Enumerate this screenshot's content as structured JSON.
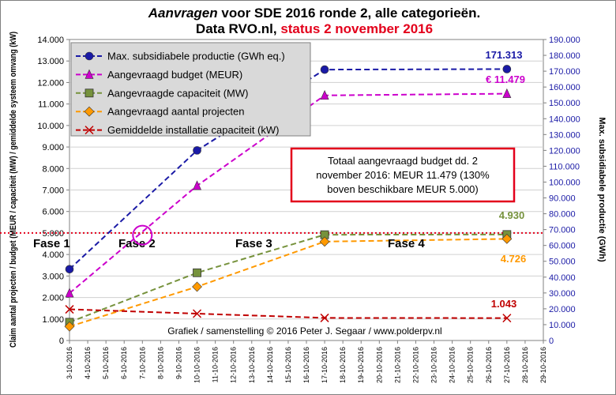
{
  "chart_data": {
    "type": "line",
    "title": {
      "italic_part": "Aanvragen",
      "rest_line1": " voor SDE 2016 ronde 2, alle categorieën.",
      "line2_black": "Data RVO.nl, ",
      "line2_red": "status 2 november 2016"
    },
    "colors": {
      "title_red": "#e3001b",
      "plot_bg": "#ffffff",
      "right_axis": "#1a1aa6",
      "grid": "#d0d0d0",
      "reference_line": "#e3001b",
      "note_border": "#e3001b",
      "circle": "#cc00cc"
    },
    "ylabel_left": "Claim aantal projecten / budget (MEUR / capaciteit (MW) / gemiddelde systeem omvang (kW)",
    "ylabel_right": "Max. subsidiabele productie (GWh)",
    "left_axis": {
      "min": 0,
      "max": 14000,
      "ticks": [
        "0",
        "1.000",
        "2.000",
        "3.000",
        "4.000",
        "5.000",
        "6.000",
        "7.000",
        "8.000",
        "9.000",
        "10.000",
        "11.000",
        "12.000",
        "13.000",
        "14.000"
      ]
    },
    "right_axis": {
      "min": 0,
      "max": 190000,
      "ticks": [
        "0",
        "10.000",
        "20.000",
        "30.000",
        "40.000",
        "50.000",
        "60.000",
        "70.000",
        "80.000",
        "90.000",
        "100.000",
        "110.000",
        "120.000",
        "130.000",
        "140.000",
        "150.000",
        "160.000",
        "170.000",
        "180.000",
        "190.000"
      ]
    },
    "x_axis": {
      "min_day": 3,
      "max_day": 29,
      "tick_labels": [
        "3-10-2016",
        "4-10-2016",
        "5-10-2016",
        "6-10-2016",
        "7-10-2016",
        "8-10-2016",
        "9-10-2016",
        "10-10-2016",
        "11-10-2016",
        "12-10-2016",
        "13-10-2016",
        "14-10-2016",
        "15-10-2016",
        "16-10-2016",
        "17-10-2016",
        "18-10-2016",
        "19-10-2016",
        "20-10-2016",
        "21-10-2016",
        "22-10-2016",
        "23-10-2016",
        "24-10-2016",
        "25-10-2016",
        "26-10-2016",
        "27-10-2016",
        "28-10-2016",
        "29-10-2016"
      ]
    },
    "series": [
      {
        "name": "Max. subsidiabele productie (GWh eq.)",
        "color": "#1a1aa6",
        "marker": "circle",
        "axis": "right",
        "x": [
          3,
          10,
          17,
          27
        ],
        "y": [
          45000,
          120000,
          171000,
          171313
        ]
      },
      {
        "name": "Aangevraagd budget (MEUR)",
        "color": "#cc00cc",
        "marker": "triangle",
        "axis": "left",
        "x": [
          3,
          10,
          17,
          27
        ],
        "y": [
          2200,
          7200,
          11400,
          11479
        ]
      },
      {
        "name": "Aangevraagde capaciteit (MW)",
        "color": "#76923c",
        "marker": "square",
        "axis": "left",
        "x": [
          3,
          10,
          17,
          27
        ],
        "y": [
          850,
          3150,
          4920,
          4930
        ]
      },
      {
        "name": "Aangevraagd aantal projecten",
        "color": "#ff9900",
        "marker": "diamond",
        "axis": "left",
        "x": [
          3,
          10,
          17,
          27
        ],
        "y": [
          650,
          2500,
          4600,
          4726
        ]
      },
      {
        "name": "Gemiddelde installatie capaciteit (kW)",
        "color": "#c00000",
        "marker": "cross",
        "axis": "left",
        "x": [
          3,
          10,
          17,
          27
        ],
        "y": [
          1450,
          1250,
          1050,
          1043
        ]
      }
    ],
    "data_labels": {
      "productie": "171.313",
      "budget": "€ 11.479",
      "capaciteit": "4.930",
      "projecten": "4.726",
      "gemiddeld": "1.043"
    },
    "reference_line_value": 5000,
    "circle_marker": {
      "x": 7,
      "y": 4900
    },
    "phases": [
      "Fase 1",
      "Fase 2",
      "Fase 3",
      "Fase 4"
    ],
    "note_lines": [
      "Totaal aangevraagd budget dd. 2",
      "november 2016: MEUR 11.479 (130%",
      "boven beschikbare MEUR 5.000)"
    ],
    "credit": "Grafiek / samenstelling © 2016 Peter J. Segaar / www.polderpv.nl"
  }
}
